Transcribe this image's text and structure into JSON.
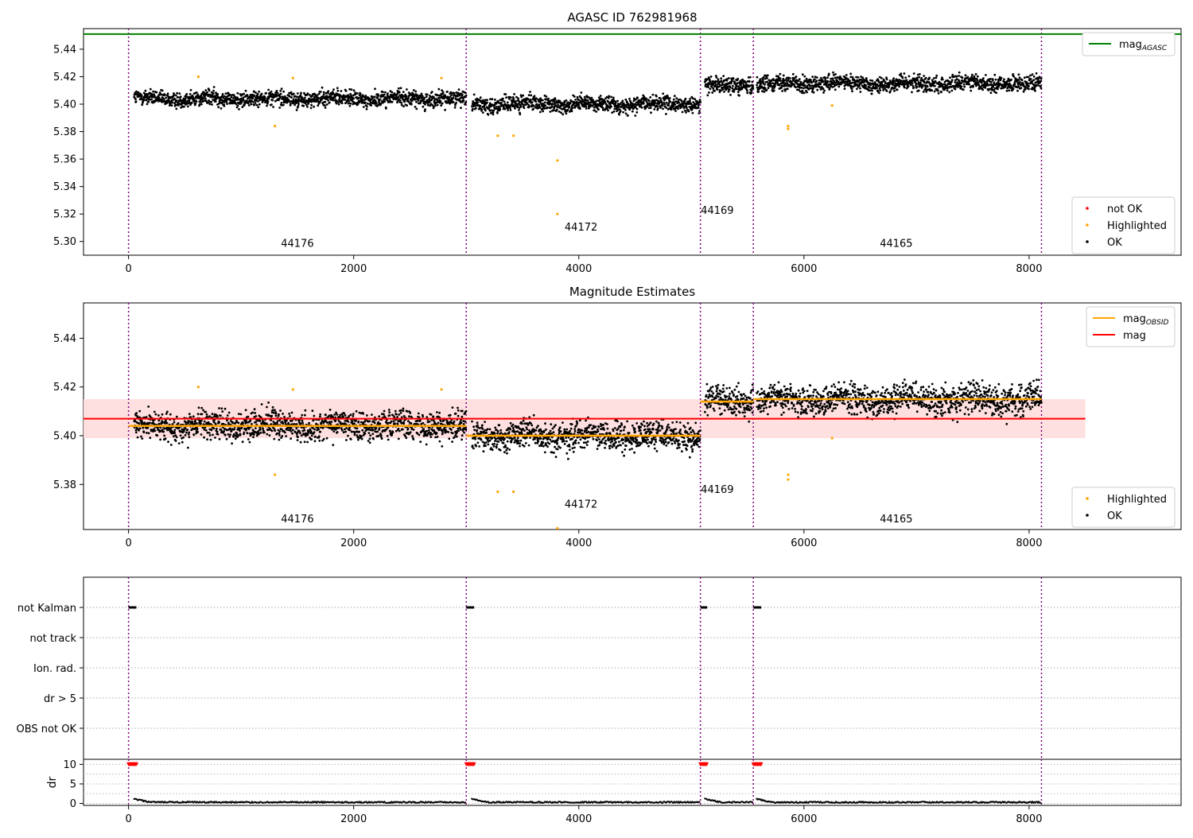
{
  "chart_data": [
    {
      "type": "scatter",
      "title": "AGASC ID 762981968",
      "xlim": [
        -400,
        9350
      ],
      "ylim": [
        5.29,
        5.455
      ],
      "xticks": [
        0,
        2000,
        4000,
        6000,
        8000
      ],
      "yticks": [
        5.3,
        5.32,
        5.34,
        5.36,
        5.38,
        5.4,
        5.42,
        5.44
      ],
      "obsid_boundaries": [
        0,
        3000,
        5080,
        5550,
        8110
      ],
      "obsid_labels": [
        {
          "text": "44176",
          "x": 1500,
          "y": 5.296
        },
        {
          "text": "44172",
          "x": 4020,
          "y": 5.308
        },
        {
          "text": "44169",
          "x": 5230,
          "y": 5.32
        },
        {
          "text": "44165",
          "x": 6820,
          "y": 5.296
        }
      ],
      "segments": [
        {
          "x0": 50,
          "x1": 3000,
          "mean": 5.404
        },
        {
          "x0": 3050,
          "x1": 5080,
          "mean": 5.4
        },
        {
          "x0": 5120,
          "x1": 5550,
          "mean": 5.414
        },
        {
          "x0": 5580,
          "x1": 8110,
          "mean": 5.415
        }
      ],
      "ok_spread": 0.004,
      "highlighted_points": [
        {
          "x": 620,
          "y": 5.42
        },
        {
          "x": 1300,
          "y": 5.384
        },
        {
          "x": 1460,
          "y": 5.419
        },
        {
          "x": 2780,
          "y": 5.419
        },
        {
          "x": 3280,
          "y": 5.377
        },
        {
          "x": 3420,
          "y": 5.377
        },
        {
          "x": 3810,
          "y": 5.359
        },
        {
          "x": 3810,
          "y": 5.32
        },
        {
          "x": 5860,
          "y": 5.384
        },
        {
          "x": 5860,
          "y": 5.382
        },
        {
          "x": 6250,
          "y": 5.399
        }
      ],
      "agasc_mag": 5.451,
      "legend_top": [
        {
          "label": "mag",
          "sub": "AGASC",
          "color": "#008000"
        }
      ],
      "legend_bottom": [
        {
          "label": "not OK",
          "color": "#ff0000"
        },
        {
          "label": "Highlighted",
          "color": "#ffa500"
        },
        {
          "label": "OK",
          "color": "#000000"
        }
      ]
    },
    {
      "type": "scatter",
      "title": "Magnitude Estimates",
      "xlim": [
        -400,
        9350
      ],
      "ylim": [
        5.3615,
        5.4545
      ],
      "xticks": [
        0,
        2000,
        4000,
        6000,
        8000
      ],
      "yticks": [
        5.38,
        5.4,
        5.42,
        5.44
      ],
      "obsid_boundaries": [
        0,
        3000,
        5080,
        5550,
        8110
      ],
      "obsid_labels": [
        {
          "text": "44176",
          "x": 1500,
          "y": 5.3645
        },
        {
          "text": "44172",
          "x": 4020,
          "y": 5.3705
        },
        {
          "text": "44169",
          "x": 5230,
          "y": 5.3765
        },
        {
          "text": "44165",
          "x": 6820,
          "y": 5.3645
        }
      ],
      "mag_mean": 5.407,
      "mag_band": [
        5.399,
        5.415
      ],
      "obsid_means": [
        {
          "x0": 0,
          "x1": 3000,
          "y": 5.404
        },
        {
          "x0": 3000,
          "x1": 5080,
          "y": 5.4
        },
        {
          "x0": 5080,
          "x1": 5550,
          "y": 5.414
        },
        {
          "x0": 5550,
          "x1": 8110,
          "y": 5.415
        }
      ],
      "highlighted_points": [
        {
          "x": 620,
          "y": 5.42
        },
        {
          "x": 1300,
          "y": 5.384
        },
        {
          "x": 1460,
          "y": 5.419
        },
        {
          "x": 2780,
          "y": 5.419
        },
        {
          "x": 3280,
          "y": 5.377
        },
        {
          "x": 3420,
          "y": 5.377
        },
        {
          "x": 3810,
          "y": 5.362
        },
        {
          "x": 5860,
          "y": 5.384
        },
        {
          "x": 5860,
          "y": 5.382
        },
        {
          "x": 6250,
          "y": 5.399
        }
      ],
      "legend_top": [
        {
          "label": "mag",
          "sub": "OBSID",
          "color": "#ffa500"
        },
        {
          "label": "mag",
          "sub": "",
          "color": "#ff0000"
        }
      ],
      "legend_bottom": [
        {
          "label": "Highlighted",
          "color": "#ffa500"
        },
        {
          "label": "OK",
          "color": "#000000"
        }
      ]
    },
    {
      "type": "scatter",
      "title": "",
      "xlim": [
        -400,
        9350
      ],
      "flag_labels": [
        "not Kalman",
        "not track",
        "Ion. rad.",
        "dr > 5",
        "OBS not OK"
      ],
      "obsid_boundaries": [
        0,
        3000,
        5080,
        5550,
        8110
      ],
      "not_kalman_ranges": [
        [
          0,
          70
        ],
        [
          3000,
          3070
        ],
        [
          5080,
          5140
        ],
        [
          5550,
          5620
        ]
      ]
    },
    {
      "type": "scatter",
      "title": "",
      "xlim": [
        -400,
        9350
      ],
      "ylim": [
        -0.5,
        11.3
      ],
      "ylabel": "dr",
      "xticks": [
        0,
        2000,
        4000,
        6000,
        8000
      ],
      "yticks": [
        0,
        5,
        10
      ],
      "obsid_boundaries": [
        0,
        3000,
        5080,
        5550,
        8110
      ],
      "clipped_ranges": [
        [
          0,
          70
        ],
        [
          3000,
          3070
        ],
        [
          5080,
          5140
        ],
        [
          5550,
          5620
        ]
      ],
      "clip_value": 10,
      "dr_baseline": 0.3
    }
  ],
  "colors": {
    "ok": "#000000",
    "highlighted": "#ffa500",
    "not_ok": "#ff0000",
    "agasc_line": "#008000",
    "mag_line": "#ff0000",
    "obsid_line": "#ffa500",
    "band": "#ffdddd",
    "boundary": "#800080"
  }
}
